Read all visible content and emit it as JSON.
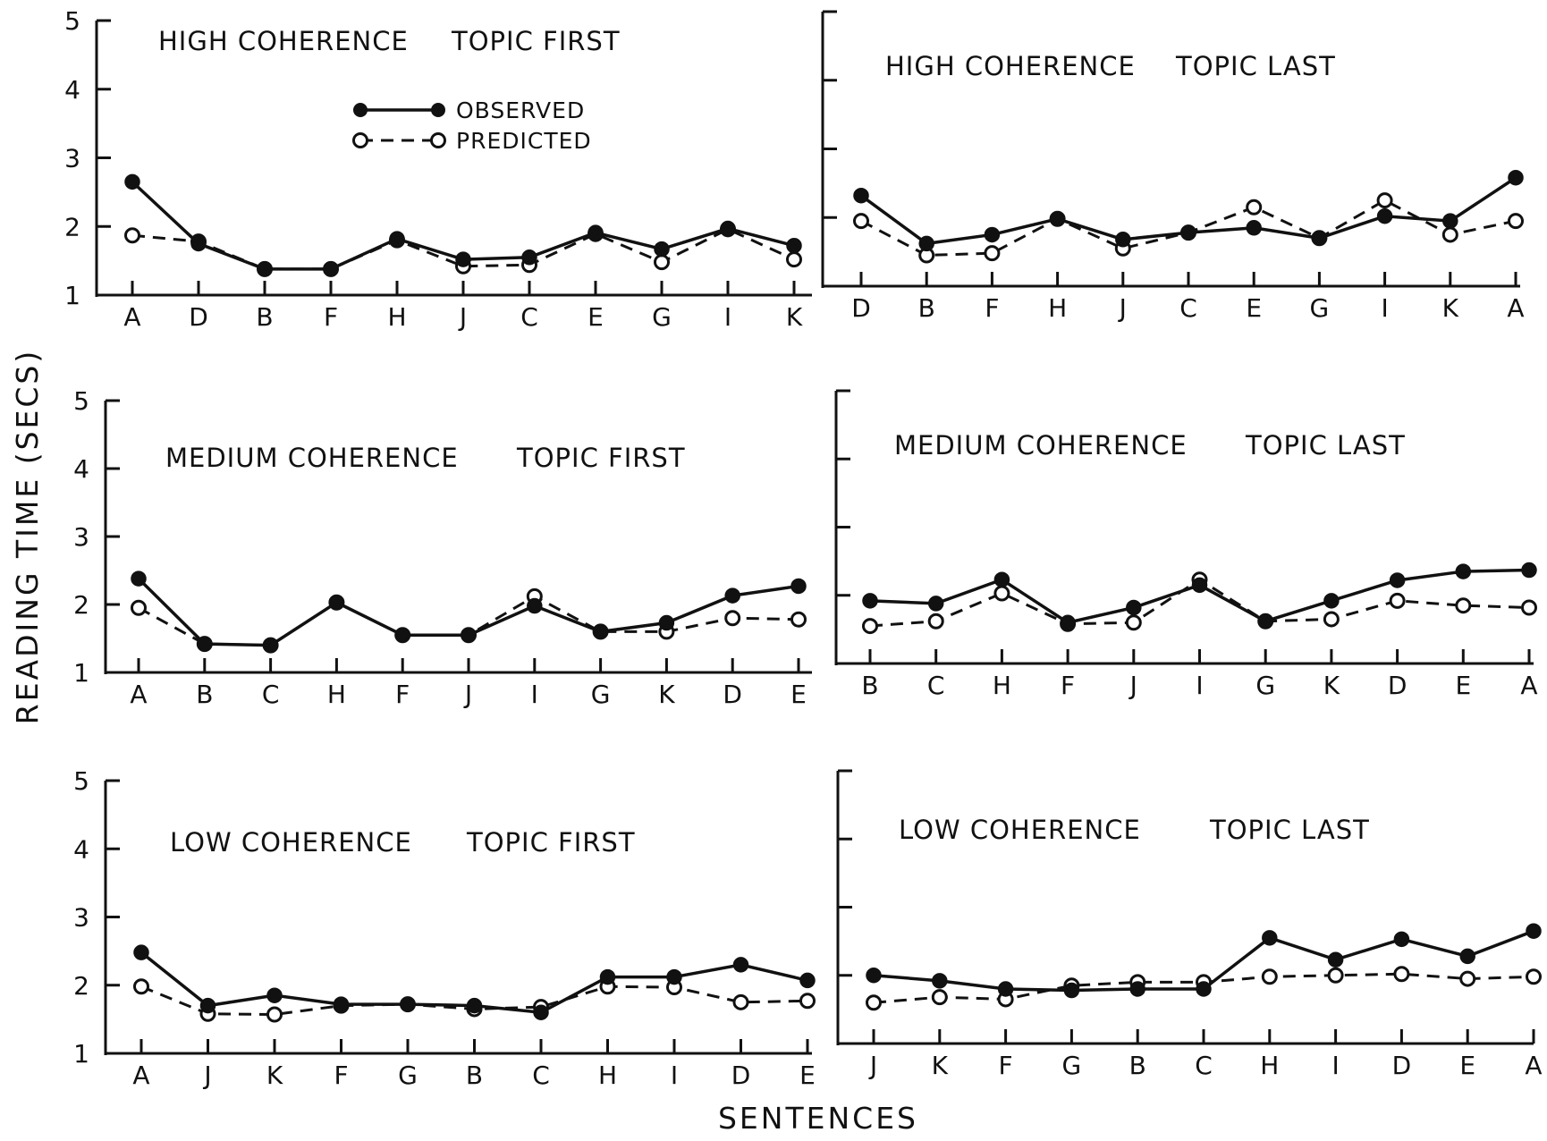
{
  "chart_data": {
    "type": "line",
    "ylabel": "READING TIME (SECS)",
    "xlabel": "SENTENCES",
    "ylim": [
      1,
      5
    ],
    "yticks": [
      1,
      2,
      3,
      4,
      5
    ],
    "grid": false,
    "legend": {
      "placement": "inside top panel",
      "entries": [
        {
          "label": "OBSERVED",
          "style": "solid line, filled circles"
        },
        {
          "label": "PREDICTED",
          "style": "dashed line, open circles"
        }
      ]
    },
    "panels": [
      {
        "title": [
          "HIGH COHERENCE",
          "TOPIC FIRST"
        ],
        "categories": [
          "A",
          "D",
          "B",
          "F",
          "H",
          "J",
          "C",
          "E",
          "G",
          "I",
          "K"
        ],
        "observed": [
          2.65,
          1.75,
          1.38,
          1.38,
          1.82,
          1.52,
          1.55,
          1.91,
          1.67,
          1.97,
          1.72
        ],
        "predicted": [
          1.87,
          1.78,
          1.38,
          1.38,
          1.8,
          1.42,
          1.44,
          1.89,
          1.48,
          1.96,
          1.52
        ]
      },
      {
        "title": [
          "HIGH COHERENCE",
          "TOPIC LAST"
        ],
        "categories": [
          "D",
          "B",
          "F",
          "H",
          "J",
          "C",
          "E",
          "G",
          "I",
          "K",
          "A"
        ],
        "observed": [
          2.32,
          1.62,
          1.75,
          1.98,
          1.68,
          1.78,
          1.85,
          1.7,
          2.02,
          1.95,
          2.58
        ],
        "predicted": [
          1.95,
          1.45,
          1.48,
          1.98,
          1.55,
          1.78,
          2.15,
          1.7,
          2.25,
          1.75,
          1.95
        ]
      },
      {
        "title": [
          "MEDIUM COHERENCE",
          "TOPIC FIRST"
        ],
        "categories": [
          "A",
          "B",
          "C",
          "H",
          "F",
          "J",
          "I",
          "G",
          "K",
          "D",
          "E"
        ],
        "observed": [
          2.38,
          1.42,
          1.4,
          2.03,
          1.55,
          1.55,
          1.98,
          1.6,
          1.73,
          2.13,
          2.27
        ],
        "predicted": [
          1.95,
          1.42,
          1.4,
          2.03,
          1.55,
          1.55,
          2.12,
          1.6,
          1.6,
          1.8,
          1.78
        ]
      },
      {
        "title": [
          "MEDIUM COHERENCE",
          "TOPIC LAST"
        ],
        "categories": [
          "B",
          "C",
          "H",
          "F",
          "J",
          "I",
          "G",
          "K",
          "D",
          "E",
          "A"
        ],
        "observed": [
          1.92,
          1.88,
          2.23,
          1.6,
          1.82,
          2.15,
          1.62,
          1.92,
          2.22,
          2.35,
          2.37
        ],
        "predicted": [
          1.55,
          1.62,
          2.03,
          1.58,
          1.6,
          2.23,
          1.62,
          1.65,
          1.92,
          1.85,
          1.82
        ]
      },
      {
        "title": [
          "LOW COHERENCE",
          "TOPIC FIRST"
        ],
        "categories": [
          "A",
          "J",
          "K",
          "F",
          "G",
          "B",
          "C",
          "H",
          "I",
          "D",
          "E"
        ],
        "observed": [
          2.48,
          1.7,
          1.85,
          1.72,
          1.72,
          1.7,
          1.6,
          2.12,
          2.12,
          2.3,
          2.07
        ],
        "predicted": [
          1.98,
          1.58,
          1.57,
          1.7,
          1.72,
          1.65,
          1.68,
          1.98,
          1.97,
          1.75,
          1.77
        ]
      },
      {
        "title": [
          "LOW COHERENCE",
          "TOPIC LAST"
        ],
        "categories": [
          "J",
          "K",
          "F",
          "G",
          "B",
          "C",
          "H",
          "I",
          "D",
          "E",
          "A"
        ],
        "observed": [
          2.0,
          1.92,
          1.8,
          1.78,
          1.8,
          1.8,
          2.55,
          2.23,
          2.53,
          2.28,
          2.65
        ],
        "predicted": [
          1.6,
          1.68,
          1.65,
          1.85,
          1.9,
          1.9,
          1.98,
          2.0,
          2.02,
          1.95,
          1.98
        ]
      }
    ]
  }
}
